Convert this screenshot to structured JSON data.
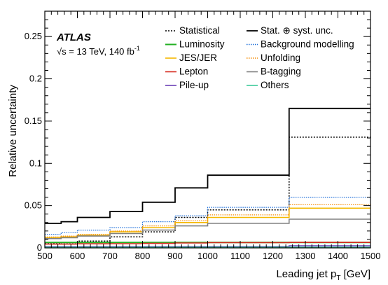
{
  "chart_data": {
    "type": "line",
    "step": true,
    "bin_edges": [
      500,
      550,
      600,
      700,
      800,
      900,
      1000,
      1250,
      1500
    ],
    "xlim": [
      500,
      1500
    ],
    "ylim": [
      0,
      0.28
    ],
    "xticks": [
      "500",
      "600",
      "700",
      "800",
      "900",
      "1000",
      "1100",
      "1200",
      "1300",
      "1400",
      "1500"
    ],
    "yticks": [
      "0",
      "0.05",
      "0.1",
      "0.15",
      "0.2",
      "0.25"
    ],
    "xlabel_main": "Leading jet p",
    "xlabel_sub": "T",
    "xlabel_unit": " [GeV]",
    "ylabel": "Relative uncertainty",
    "atlas_label": "ATLAS",
    "energy_label": {
      "sqrt": "√s",
      "text": " = 13 TeV, 140 fb",
      "sup": "-1"
    },
    "series": [
      {
        "name": "Statistical",
        "key": "stat",
        "color": "#000000",
        "dash": "2,2",
        "width": 1.5,
        "values": [
          0.005,
          0.006,
          0.008,
          0.013,
          0.019,
          0.036,
          0.045,
          0.131
        ]
      },
      {
        "name": "Stat. ⊕ syst. unc.",
        "key": "total",
        "color": "#000000",
        "dash": "",
        "width": 1.8,
        "values": [
          0.029,
          0.031,
          0.036,
          0.043,
          0.054,
          0.071,
          0.086,
          0.165
        ]
      },
      {
        "name": "Luminosity",
        "key": "lumi",
        "color": "#22b022",
        "dash": "",
        "width": 2,
        "values": [
          0.0065,
          0.0065,
          0.0065,
          0.0065,
          0.0065,
          0.0065,
          0.0065,
          0.0065
        ]
      },
      {
        "name": "Background modelling",
        "key": "bkg",
        "color": "#1e6fd9",
        "dash": "1.5,1.5",
        "width": 1.2,
        "values": [
          0.016,
          0.018,
          0.021,
          0.024,
          0.031,
          0.038,
          0.048,
          0.06
        ]
      },
      {
        "name": "JES/JER",
        "key": "jes",
        "color": "#f5b800",
        "dash": "",
        "width": 1.6,
        "values": [
          0.012,
          0.013,
          0.015,
          0.019,
          0.024,
          0.03,
          0.036,
          0.047
        ]
      },
      {
        "name": "Unfolding",
        "key": "unfold",
        "color": "#f58a00",
        "dash": "1.5,1.5",
        "width": 1.2,
        "values": [
          0.013,
          0.014,
          0.016,
          0.02,
          0.026,
          0.032,
          0.039,
          0.051
        ]
      },
      {
        "name": "Lepton",
        "key": "lepton",
        "color": "#d62a1e",
        "dash": "",
        "width": 1.6,
        "values": [
          0.0045,
          0.0045,
          0.0048,
          0.005,
          0.0053,
          0.0058,
          0.0062,
          0.0065
        ]
      },
      {
        "name": "B-tagging",
        "key": "btag",
        "color": "#808080",
        "dash": "",
        "width": 1.6,
        "values": [
          0.011,
          0.012,
          0.014,
          0.017,
          0.021,
          0.026,
          0.029,
          0.034
        ]
      },
      {
        "name": "Pile-up",
        "key": "pileup",
        "color": "#6a3fb5",
        "dash": "",
        "width": 1.6,
        "values": [
          0.0015,
          0.0015,
          0.0015,
          0.0015,
          0.0015,
          0.0015,
          0.0015,
          0.0025
        ]
      },
      {
        "name": "Others",
        "key": "others",
        "color": "#3cc99a",
        "dash": "",
        "width": 1.6,
        "values": [
          0.0008,
          0.0008,
          0.0008,
          0.0008,
          0.0008,
          0.0008,
          0.0008,
          0.0008
        ]
      }
    ],
    "legend": {
      "placement": "top-right",
      "columns": [
        [
          "stat",
          "lumi",
          "jes",
          "lepton",
          "pileup"
        ],
        [
          "total",
          "bkg",
          "unfold",
          "btag",
          "others"
        ]
      ]
    }
  }
}
